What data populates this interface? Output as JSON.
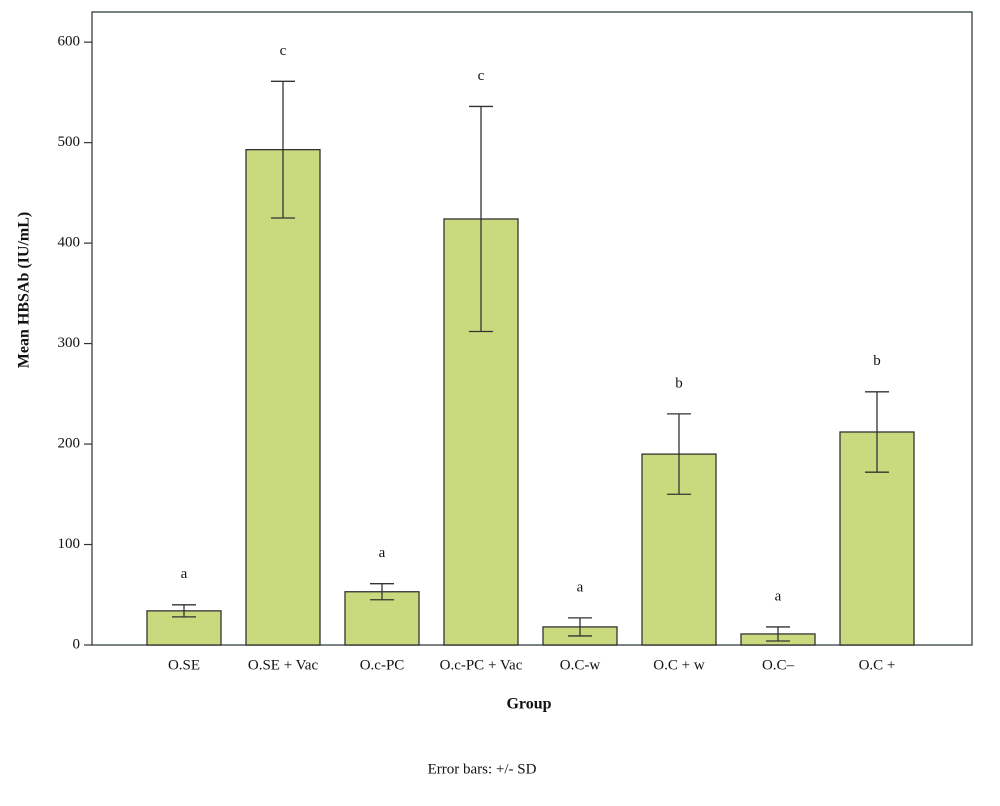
{
  "chart_data": {
    "type": "bar",
    "x_label": "Group",
    "y_label": "Mean HBSAb (IU/mL)",
    "footnote": "Error bars: +/- SD",
    "categories": [
      "O.SE",
      "O.SE + Vac",
      "O.c-PC",
      "O.c-PC + Vac",
      "O.C-w",
      "O.C + w",
      "O.C–",
      "O.C +"
    ],
    "values": [
      34,
      493,
      53,
      424,
      18,
      190,
      11,
      212
    ],
    "errors": [
      6,
      68,
      8,
      112,
      9,
      40,
      7,
      40
    ],
    "annotations": [
      "a",
      "c",
      "a",
      "c",
      "a",
      "b",
      "a",
      "b"
    ],
    "color": "#c9da7e",
    "ylim": [
      0,
      630
    ],
    "yticks": [
      0,
      100,
      200,
      300,
      400,
      500,
      600
    ]
  }
}
